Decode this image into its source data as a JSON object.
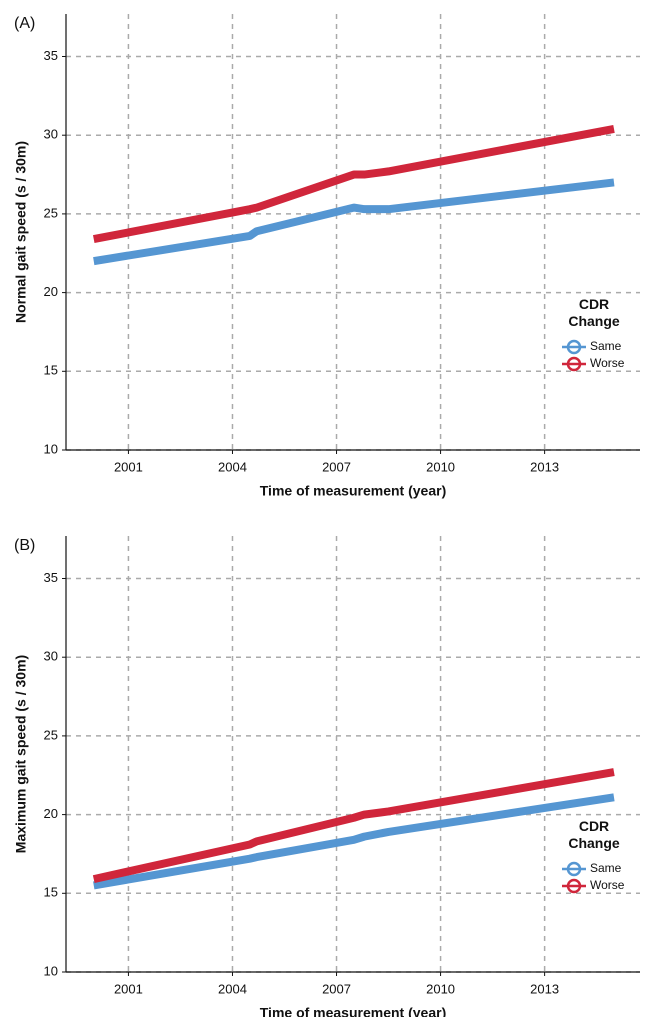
{
  "chart_data": [
    {
      "type": "line",
      "panel_label": "(A)",
      "x_label": "Time of measurement (year)",
      "y_label": "Normal gait speed (s / 30m)",
      "x": [
        2000,
        2004.5,
        2004.7,
        2007.5,
        2007.8,
        2008.5,
        2015
      ],
      "series": [
        {
          "name": "Same",
          "color": "#5596d2",
          "values": [
            22.0,
            23.6,
            23.9,
            25.4,
            25.3,
            25.3,
            27.0
          ]
        },
        {
          "name": "Worse",
          "color": "#d0263b",
          "values": [
            23.4,
            25.3,
            25.4,
            27.5,
            27.5,
            27.7,
            30.4
          ]
        }
      ],
      "xlim": [
        1999.2,
        2015.75
      ],
      "xticks": [
        2001,
        2004,
        2007,
        2010,
        2013
      ],
      "ylim": [
        10,
        37.7
      ],
      "yticks": [
        10,
        15,
        20,
        25,
        30,
        35
      ],
      "grid": true,
      "legend_title": "CDR Change",
      "legend_position": "right"
    },
    {
      "type": "line",
      "panel_label": "(B)",
      "x_label": "Time of measurement (year)",
      "y_label": "Maximum gait speed (s / 30m)",
      "x": [
        2000,
        2004.5,
        2004.7,
        2007.5,
        2007.8,
        2008.5,
        2015
      ],
      "series": [
        {
          "name": "Same",
          "color": "#5596d2",
          "values": [
            15.5,
            17.2,
            17.3,
            18.4,
            18.6,
            18.9,
            21.1
          ]
        },
        {
          "name": "Worse",
          "color": "#d0263b",
          "values": [
            15.9,
            18.1,
            18.3,
            19.8,
            20.0,
            20.2,
            22.7
          ]
        }
      ],
      "xlim": [
        1999.2,
        2015.75
      ],
      "xticks": [
        2001,
        2004,
        2007,
        2010,
        2013
      ],
      "ylim": [
        10,
        37.7
      ],
      "yticks": [
        10,
        15,
        20,
        25,
        30,
        35
      ],
      "grid": true,
      "legend_title": "CDR Change",
      "legend_position": "right"
    }
  ]
}
